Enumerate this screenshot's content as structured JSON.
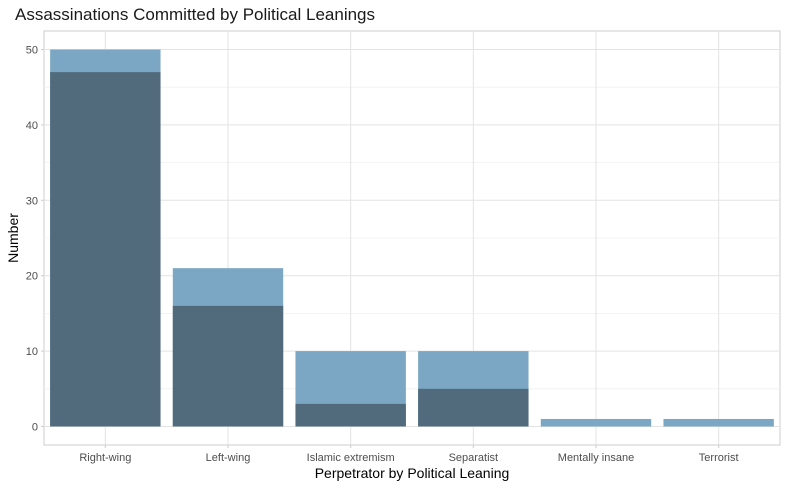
{
  "chart_data": {
    "type": "bar",
    "title": "Assassinations Committed by Political Leanings",
    "xlabel": "Perpetrator by Political Leaning",
    "ylabel": "Number",
    "categories": [
      "Right-wing",
      "Left-wing",
      "Islamic extremism",
      "Separatist",
      "Mentally insane",
      "Terrorist"
    ],
    "series": [
      {
        "values": [
          50,
          21,
          10,
          10,
          1,
          1
        ],
        "color": "#7ba7c4"
      },
      {
        "values": [
          47,
          16,
          3,
          5,
          0,
          0
        ],
        "color": "#516b7c"
      }
    ],
    "ylim": [
      0,
      52.5
    ],
    "yticks": [
      0,
      10,
      20,
      30,
      40,
      50
    ],
    "grid": true,
    "legend": "none"
  }
}
